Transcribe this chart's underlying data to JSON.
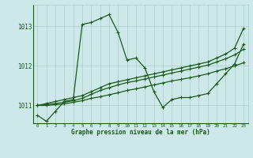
{
  "xlabel": "Graphe pression niveau de la mer (hPa)",
  "ylim": [
    1010.55,
    1013.55
  ],
  "xlim": [
    -0.5,
    23.5
  ],
  "yticks": [
    1011,
    1012,
    1013
  ],
  "xticks": [
    0,
    1,
    2,
    3,
    4,
    5,
    6,
    7,
    8,
    9,
    10,
    11,
    12,
    13,
    14,
    15,
    16,
    17,
    18,
    19,
    20,
    21,
    22,
    23
  ],
  "bg_color": "#cce8e8",
  "grid_color": "#aacccc",
  "line_color": "#1a5c1a",
  "series_main": [
    1010.75,
    1010.6,
    1010.85,
    1011.1,
    1011.15,
    1013.05,
    1013.1,
    1013.2,
    1013.3,
    1012.85,
    1012.15,
    1012.2,
    1011.95,
    1011.35,
    1010.95,
    1011.15,
    1011.2,
    1011.2,
    1011.25,
    1011.3,
    1011.55,
    1011.8,
    1012.05,
    1012.55
  ],
  "series_trend1": [
    1011.0,
    1011.05,
    1011.1,
    1011.15,
    1011.2,
    1011.25,
    1011.35,
    1011.45,
    1011.55,
    1011.6,
    1011.65,
    1011.7,
    1011.75,
    1011.8,
    1011.85,
    1011.9,
    1011.95,
    1012.0,
    1012.05,
    1012.1,
    1012.2,
    1012.3,
    1012.45,
    1012.95
  ],
  "series_trend2": [
    1011.0,
    1011.02,
    1011.05,
    1011.08,
    1011.12,
    1011.18,
    1011.28,
    1011.38,
    1011.45,
    1011.52,
    1011.58,
    1011.62,
    1011.67,
    1011.72,
    1011.77,
    1011.82,
    1011.87,
    1011.92,
    1011.97,
    1012.02,
    1012.1,
    1012.18,
    1012.28,
    1012.42
  ],
  "series_trend3": [
    1011.0,
    1011.0,
    1011.02,
    1011.04,
    1011.08,
    1011.12,
    1011.18,
    1011.22,
    1011.27,
    1011.32,
    1011.38,
    1011.42,
    1011.47,
    1011.52,
    1011.57,
    1011.62,
    1011.66,
    1011.7,
    1011.75,
    1011.8,
    1011.87,
    1011.93,
    1012.0,
    1012.08
  ],
  "marker": "+",
  "marker_size": 3,
  "line_width": 0.9
}
